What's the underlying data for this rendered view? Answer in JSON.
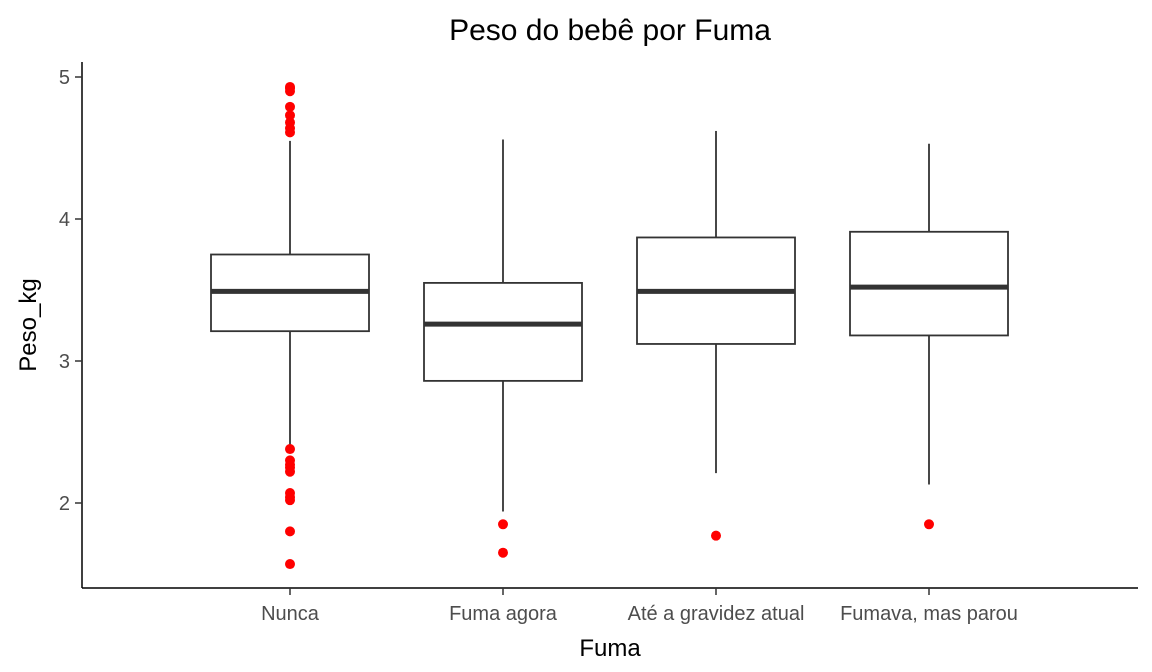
{
  "chart_data": {
    "type": "boxplot",
    "title": "Peso do bebê por Fuma",
    "xlabel": "Fuma",
    "ylabel": "Peso_kg",
    "categories": [
      "Nunca",
      "Fuma agora",
      "Até a gravidez atual",
      "Fumava, mas parou"
    ],
    "boxes": [
      {
        "category": "Nunca",
        "whisker_low": 2.41,
        "q1": 3.21,
        "median": 3.49,
        "q3": 3.75,
        "whisker_high": 4.55,
        "outliers": [
          4.93,
          4.92,
          4.9,
          4.79,
          4.73,
          4.68,
          4.64,
          4.61,
          2.38,
          2.3,
          2.27,
          2.25,
          2.22,
          2.07,
          2.04,
          2.02,
          1.8,
          1.57
        ]
      },
      {
        "category": "Fuma agora",
        "whisker_low": 1.94,
        "q1": 2.86,
        "median": 3.26,
        "q3": 3.55,
        "whisker_high": 4.56,
        "outliers": [
          1.85,
          1.65
        ]
      },
      {
        "category": "Até a gravidez atual",
        "whisker_low": 2.21,
        "q1": 3.12,
        "median": 3.49,
        "q3": 3.87,
        "whisker_high": 4.62,
        "outliers": [
          1.77
        ]
      },
      {
        "category": "Fumava, mas parou",
        "whisker_low": 2.13,
        "q1": 3.18,
        "median": 3.52,
        "q3": 3.91,
        "whisker_high": 4.53,
        "outliers": [
          1.85
        ]
      }
    ],
    "yticks": [
      2,
      3,
      4,
      5
    ],
    "ylim": [
      1.45,
      5.1
    ],
    "grid": false,
    "legend": "none",
    "colors": {
      "box": "#333333",
      "outlier": "#ff0000",
      "axis": "#000000",
      "tick_text": "#4d4d4d"
    }
  }
}
